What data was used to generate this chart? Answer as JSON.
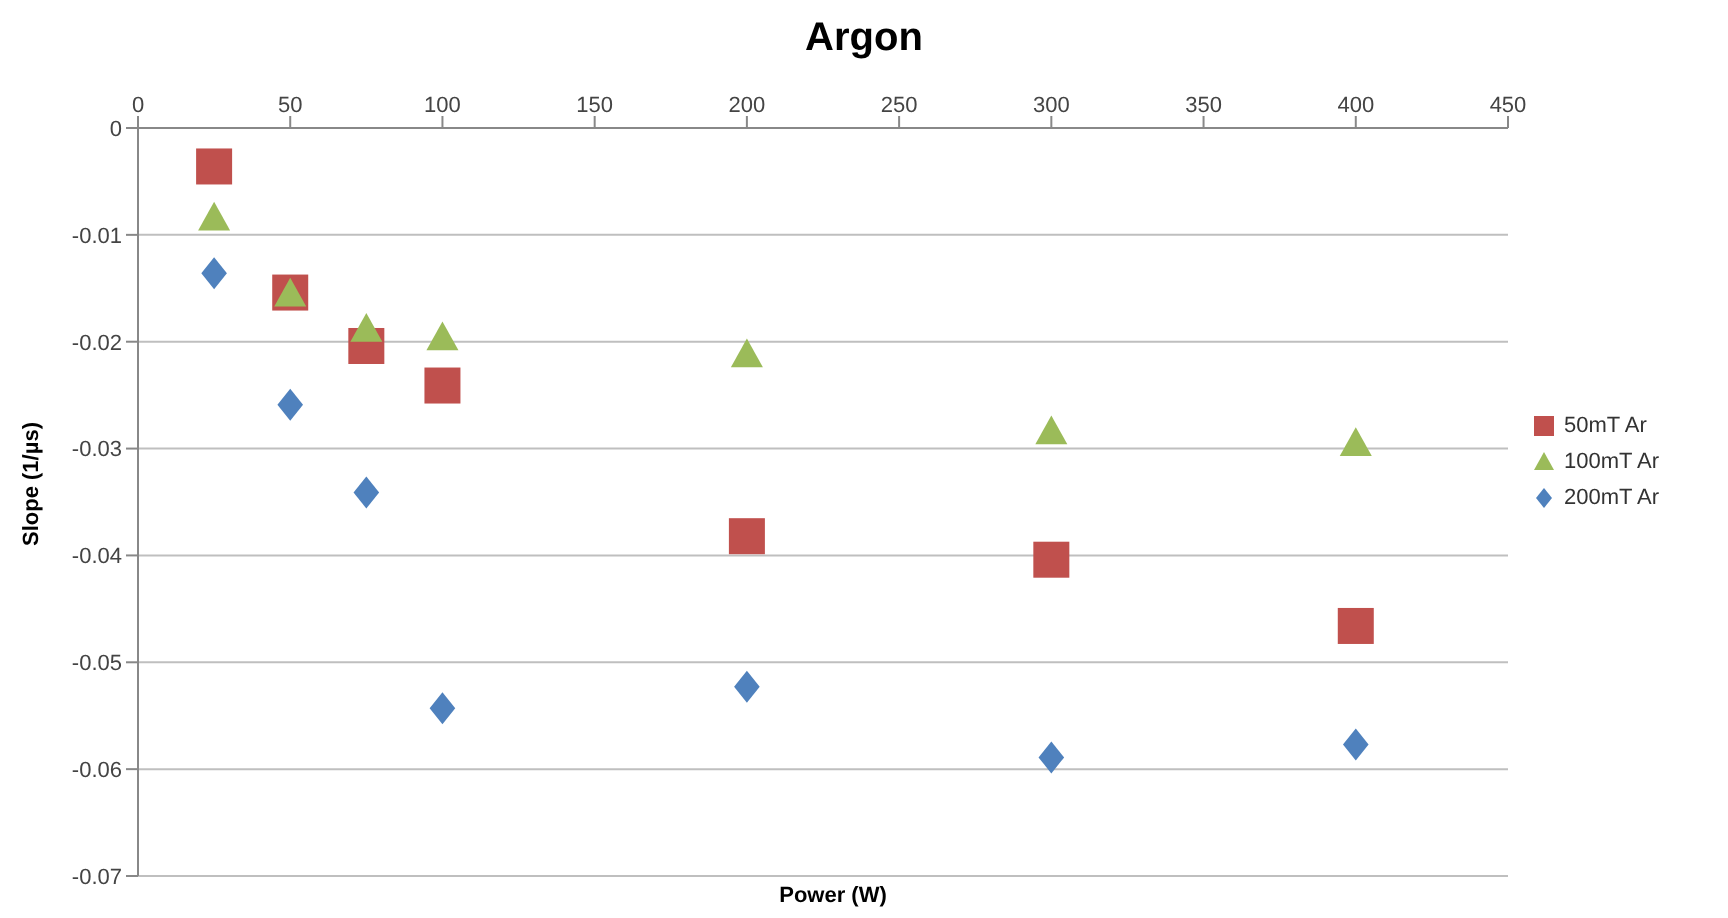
{
  "chart_data": {
    "type": "scatter",
    "title": "Argon",
    "xlabel": "Power (W)",
    "ylabel": "Slope (1/µs)",
    "x": [
      25,
      50,
      75,
      100,
      200,
      300,
      400
    ],
    "series": [
      {
        "name": "50mT Ar",
        "color": "#c0504d",
        "marker": "square",
        "values": [
          -0.0036,
          -0.0154,
          -0.0204,
          -0.0241,
          -0.0382,
          -0.0404,
          -0.0466
        ]
      },
      {
        "name": "100mT Ar",
        "color": "#9bbb59",
        "marker": "triangle",
        "values": [
          -0.0084,
          -0.0155,
          -0.0188,
          -0.0196,
          -0.0212,
          -0.0284,
          -0.0295
        ]
      },
      {
        "name": "200mT Ar",
        "color": "#4f81bd",
        "marker": "diamond",
        "values": [
          -0.0136,
          -0.0259,
          -0.0341,
          -0.0543,
          -0.0523,
          -0.0589,
          -0.0577
        ]
      }
    ],
    "xlim": [
      0,
      450
    ],
    "xticks": [
      0,
      50,
      100,
      150,
      200,
      250,
      300,
      350,
      400,
      450
    ],
    "ylim": [
      -0.07,
      0
    ],
    "yticks": [
      0,
      -0.01,
      -0.02,
      -0.03,
      -0.04,
      -0.05,
      -0.06,
      -0.07
    ],
    "grid": "y",
    "legend": "right"
  }
}
